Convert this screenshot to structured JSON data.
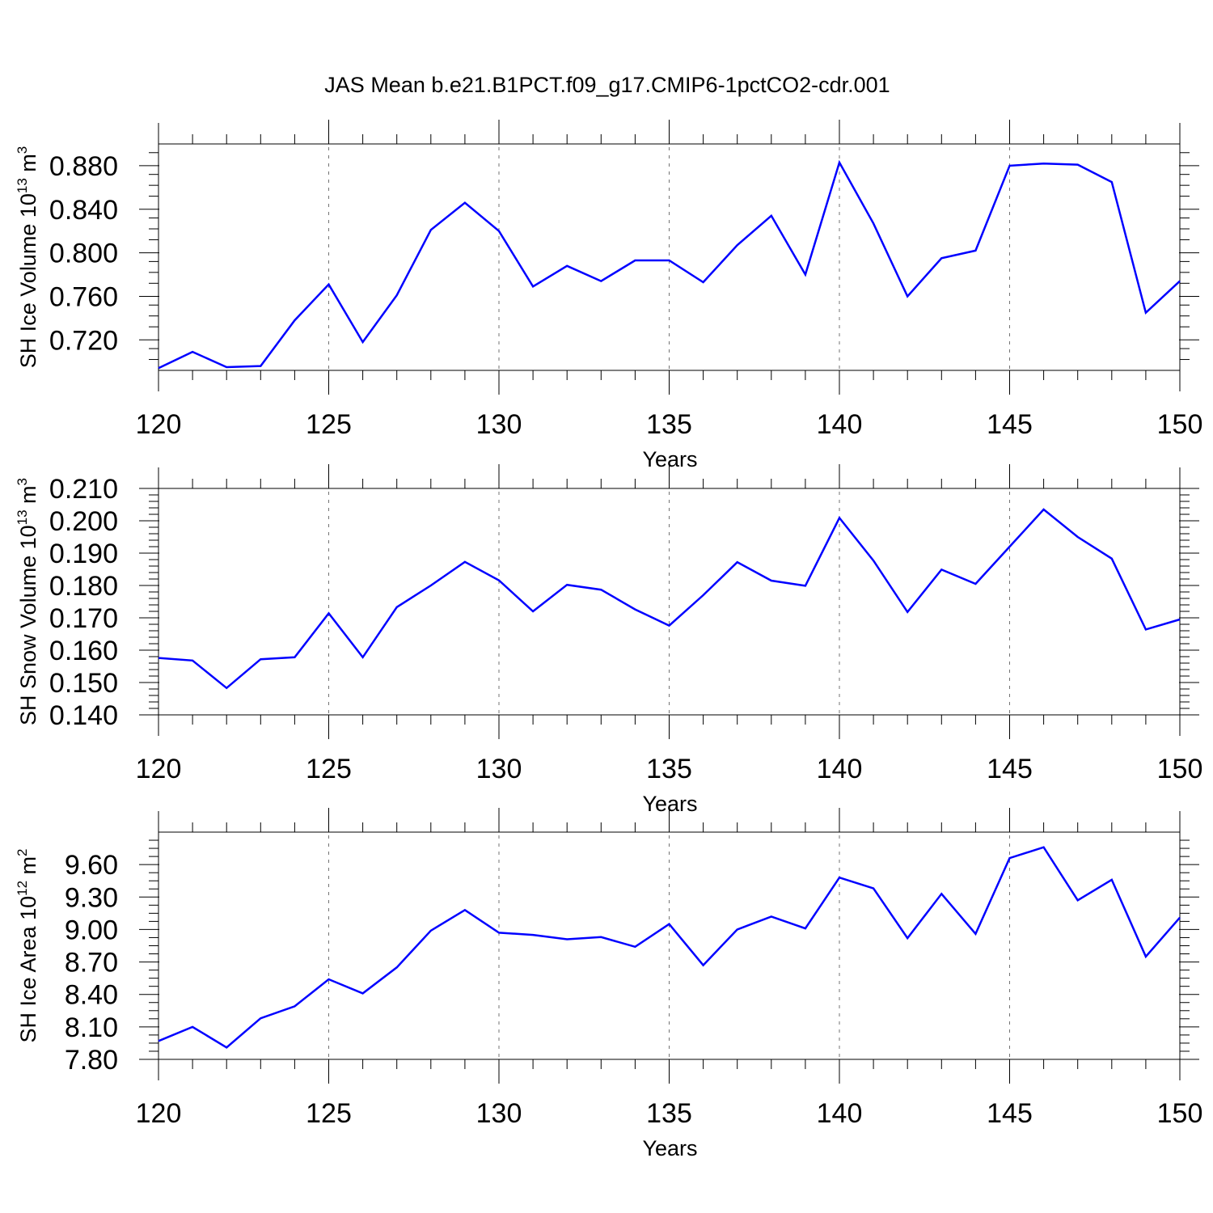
{
  "title": "JAS Mean b.e21.B1PCT.f09_g17.CMIP6-1pctCO2-cdr.001",
  "colors": {
    "line": "#0000ff",
    "axis": "#000000",
    "grid": "#808080"
  },
  "chart_data": [
    {
      "type": "line",
      "name": "sh-ice-volume",
      "ylabel": {
        "main": "SH Ice Volume 10",
        "exp1": "13",
        "mid": " m",
        "exp2": "3"
      },
      "xlabel": "Years",
      "xlim": [
        120,
        150
      ],
      "ylim": [
        0.692,
        0.9
      ],
      "x_major_ticks": [
        120,
        125,
        130,
        135,
        140,
        145,
        150
      ],
      "y_major_ticks": [
        0.72,
        0.76,
        0.8,
        0.84,
        0.88
      ],
      "y_tick_labels": [
        "0.720",
        "0.760",
        "0.800",
        "0.840",
        "0.880"
      ],
      "y_minor_step": 0.01,
      "grid": "x-dashed",
      "x": [
        120,
        121,
        122,
        123,
        124,
        125,
        126,
        127,
        128,
        129,
        130,
        131,
        132,
        133,
        134,
        135,
        136,
        137,
        138,
        139,
        140,
        141,
        142,
        143,
        144,
        145,
        146,
        147,
        148,
        149,
        150
      ],
      "values": [
        0.694,
        0.709,
        0.695,
        0.696,
        0.738,
        0.771,
        0.718,
        0.761,
        0.821,
        0.846,
        0.82,
        0.769,
        0.788,
        0.774,
        0.793,
        0.793,
        0.773,
        0.807,
        0.834,
        0.78,
        0.883,
        0.827,
        0.76,
        0.795,
        0.802,
        0.88,
        0.882,
        0.881,
        0.865,
        0.745,
        0.774
      ]
    },
    {
      "type": "line",
      "name": "sh-snow-volume",
      "ylabel": {
        "main": "SH Snow Volume 10",
        "exp1": "13",
        "mid": " m",
        "exp2": "3"
      },
      "xlabel": "Years",
      "xlim": [
        120,
        150
      ],
      "ylim": [
        0.14,
        0.21
      ],
      "x_major_ticks": [
        120,
        125,
        130,
        135,
        140,
        145,
        150
      ],
      "y_major_ticks": [
        0.14,
        0.15,
        0.16,
        0.17,
        0.18,
        0.19,
        0.2,
        0.21
      ],
      "y_tick_labels": [
        "0.140",
        "0.150",
        "0.160",
        "0.170",
        "0.180",
        "0.190",
        "0.200",
        "0.210"
      ],
      "y_minor_step": 0.002,
      "grid": "x-dashed",
      "x": [
        120,
        121,
        122,
        123,
        124,
        125,
        126,
        127,
        128,
        129,
        130,
        131,
        132,
        133,
        134,
        135,
        136,
        137,
        138,
        139,
        140,
        141,
        142,
        143,
        144,
        145,
        146,
        147,
        148,
        149,
        150
      ],
      "values": [
        0.1576,
        0.1568,
        0.1483,
        0.1572,
        0.1578,
        0.1714,
        0.1578,
        0.1733,
        0.18,
        0.1873,
        0.1816,
        0.172,
        0.1802,
        0.1787,
        0.1726,
        0.1676,
        0.177,
        0.1872,
        0.1815,
        0.1799,
        0.2009,
        0.1877,
        0.1718,
        0.1849,
        0.1805,
        0.192,
        0.2035,
        0.195,
        0.1883,
        0.1664,
        0.1695
      ]
    },
    {
      "type": "line",
      "name": "sh-ice-area",
      "ylabel": {
        "main": "SH Ice Area 10",
        "exp1": "12",
        "mid": " m",
        "exp2": "2"
      },
      "xlabel": "Years",
      "xlim": [
        120,
        150
      ],
      "ylim": [
        7.8,
        9.9
      ],
      "x_major_ticks": [
        120,
        125,
        130,
        135,
        140,
        145,
        150
      ],
      "y_major_ticks": [
        7.8,
        8.1,
        8.4,
        8.7,
        9.0,
        9.3,
        9.6
      ],
      "y_tick_labels": [
        "7.80",
        "8.10",
        "8.40",
        "8.70",
        "9.00",
        "9.30",
        "9.60"
      ],
      "y_minor_step": 0.075,
      "grid": "x-dashed",
      "x": [
        120,
        121,
        122,
        123,
        124,
        125,
        126,
        127,
        128,
        129,
        130,
        131,
        132,
        133,
        134,
        135,
        136,
        137,
        138,
        139,
        140,
        141,
        142,
        143,
        144,
        145,
        146,
        147,
        148,
        149,
        150
      ],
      "values": [
        7.97,
        8.1,
        7.91,
        8.18,
        8.29,
        8.54,
        8.41,
        8.65,
        8.99,
        9.18,
        8.97,
        8.95,
        8.91,
        8.93,
        8.84,
        9.05,
        8.67,
        9.0,
        9.12,
        9.01,
        9.48,
        9.38,
        8.92,
        9.33,
        8.96,
        9.66,
        9.76,
        9.27,
        9.46,
        8.75,
        9.11
      ]
    }
  ]
}
